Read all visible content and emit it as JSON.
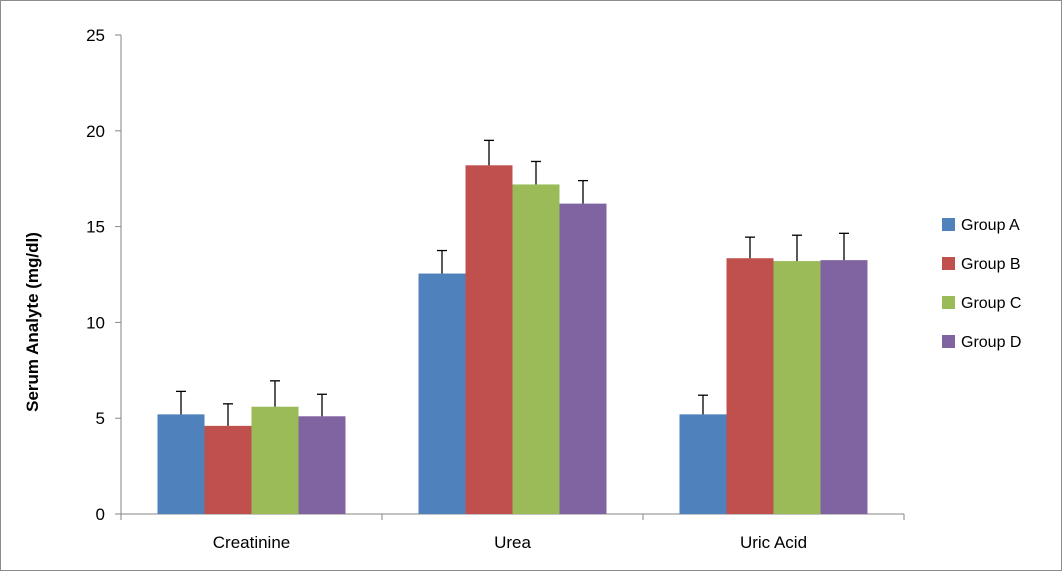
{
  "chart_data": {
    "type": "bar",
    "title": "",
    "xlabel": "",
    "ylabel": "Serum Analyte (mg/dl)",
    "ylim": [
      0,
      25
    ],
    "yticks": [
      0,
      5,
      10,
      15,
      20,
      25
    ],
    "categories": [
      "Creatinine",
      "Urea",
      "Uric Acid"
    ],
    "series": [
      {
        "name": "Group A",
        "color": "#4F81BD",
        "values": [
          5.2,
          12.55,
          5.2
        ],
        "errors": [
          1.2,
          1.2,
          1.0
        ]
      },
      {
        "name": "Group B",
        "color": "#C0504D",
        "values": [
          4.6,
          18.2,
          13.35
        ],
        "errors": [
          1.15,
          1.3,
          1.1
        ]
      },
      {
        "name": "Group C",
        "color": "#9BBB59",
        "values": [
          5.6,
          17.2,
          13.2
        ],
        "errors": [
          1.35,
          1.2,
          1.35
        ]
      },
      {
        "name": "Group D",
        "color": "#8064A2",
        "values": [
          5.1,
          16.2,
          13.25
        ],
        "errors": [
          1.15,
          1.2,
          1.4
        ]
      }
    ],
    "grid": false,
    "legend_position": "right",
    "error_bars": true
  }
}
